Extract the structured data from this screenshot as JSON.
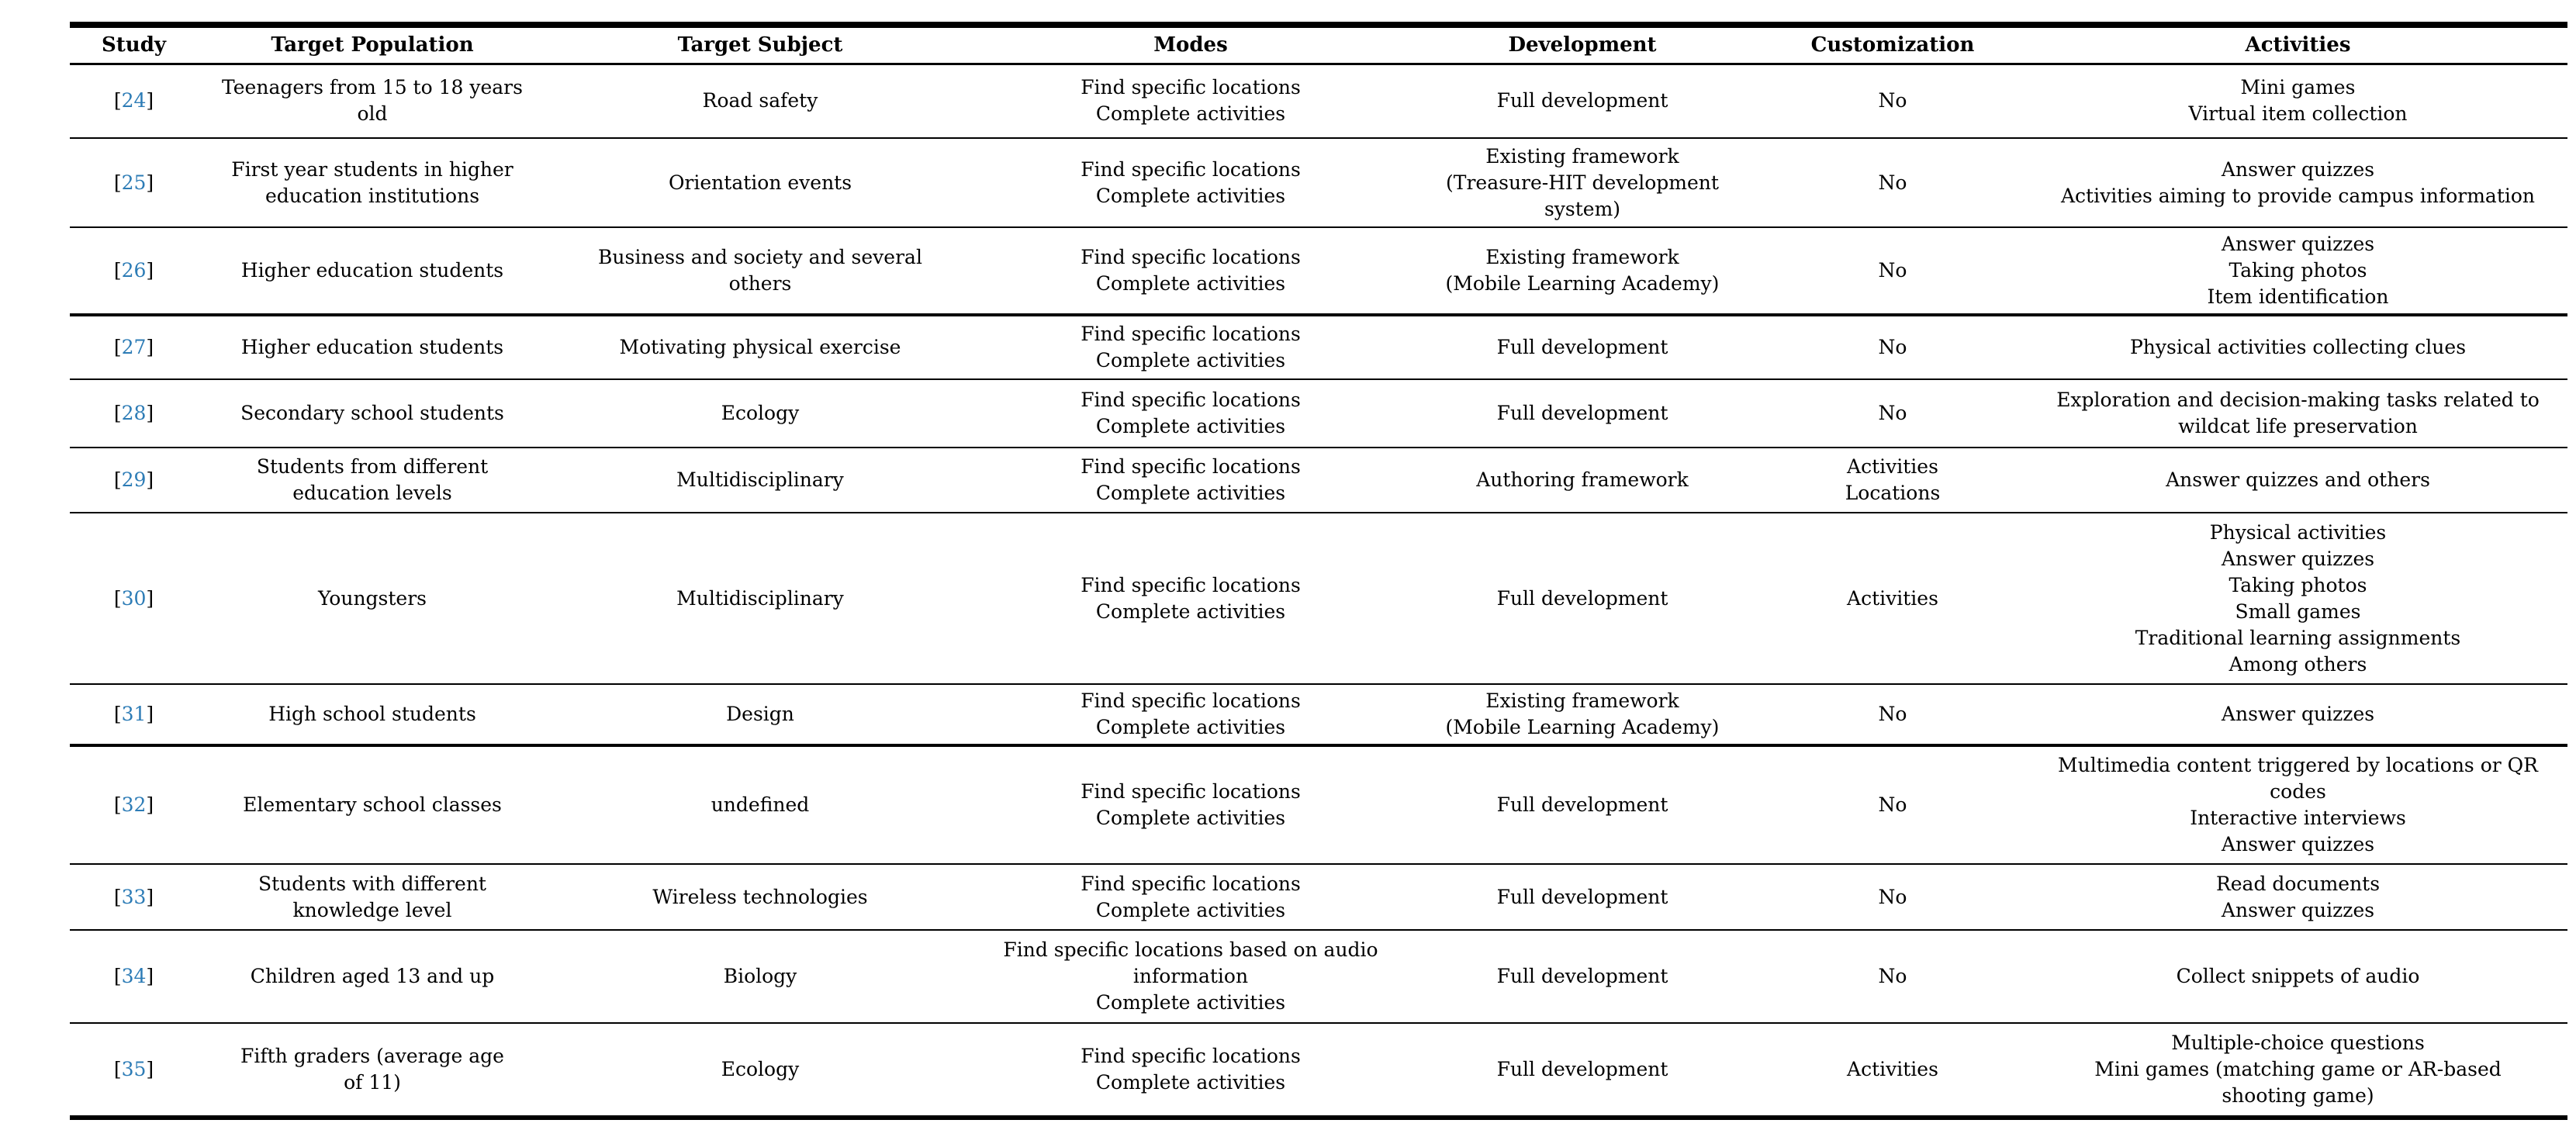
{
  "colors": {
    "citation_link": "#2d7cb6",
    "text": "#000000",
    "rule": "#000000",
    "background": "#ffffff"
  },
  "table": {
    "columns": [
      "Study",
      "Target Population",
      "Target Subject",
      "Modes",
      "Development",
      "Customization",
      "Activities"
    ],
    "citation_brackets": [
      "[",
      "]"
    ],
    "rows": [
      {
        "study": "24",
        "target_population": [
          "Teenagers from 15 to 18 years",
          "old"
        ],
        "target_subject": [
          "Road safety"
        ],
        "modes": [
          "Find specific locations",
          "Complete activities"
        ],
        "development": [
          "Full development"
        ],
        "customization": [
          "No"
        ],
        "activities": [
          "Mini games",
          "Virtual item collection"
        ]
      },
      {
        "study": "25",
        "target_population": [
          "First year students in higher",
          "education institutions"
        ],
        "target_subject": [
          "Orientation events"
        ],
        "modes": [
          "Find specific locations",
          "Complete activities"
        ],
        "development": [
          "Existing framework",
          "(Treasure-HIT development",
          "system)"
        ],
        "customization": [
          "No"
        ],
        "activities": [
          "Answer quizzes",
          "Activities aiming to provide campus information"
        ]
      },
      {
        "study": "26",
        "target_population": [
          "Higher education students"
        ],
        "target_subject": [
          "Business and society and several",
          "others"
        ],
        "modes": [
          "Find specific locations",
          "Complete activities"
        ],
        "development": [
          "Existing framework",
          "(Mobile Learning Academy)"
        ],
        "customization": [
          "No"
        ],
        "activities": [
          "Answer quizzes",
          "Taking photos",
          "Item identification"
        ]
      },
      {
        "study": "27",
        "target_population": [
          "Higher education students"
        ],
        "target_subject": [
          "Motivating physical exercise"
        ],
        "modes": [
          "Find specific locations",
          "Complete activities"
        ],
        "development": [
          "Full development"
        ],
        "customization": [
          "No"
        ],
        "activities": [
          "Physical activities collecting clues"
        ]
      },
      {
        "study": "28",
        "target_population": [
          "Secondary school students"
        ],
        "target_subject": [
          "Ecology"
        ],
        "modes": [
          "Find specific locations",
          "Complete activities"
        ],
        "development": [
          "Full development"
        ],
        "customization": [
          "No"
        ],
        "activities": [
          "Exploration and decision-making tasks related to",
          "wildcat life preservation"
        ]
      },
      {
        "study": "29",
        "target_population": [
          "Students from different",
          "education levels"
        ],
        "target_subject": [
          "Multidisciplinary"
        ],
        "modes": [
          "Find specific locations",
          "Complete activities"
        ],
        "development": [
          "Authoring framework"
        ],
        "customization": [
          "Activities",
          "Locations"
        ],
        "activities": [
          "Answer quizzes and others"
        ]
      },
      {
        "study": "30",
        "target_population": [
          "Youngsters"
        ],
        "target_subject": [
          "Multidisciplinary"
        ],
        "modes": [
          "Find specific locations",
          "Complete activities"
        ],
        "development": [
          "Full development"
        ],
        "customization": [
          "Activities"
        ],
        "activities": [
          "Physical activities",
          "Answer quizzes",
          "Taking photos",
          "Small games",
          "Traditional learning assignments",
          "Among others"
        ]
      },
      {
        "study": "31",
        "target_population": [
          "High school students"
        ],
        "target_subject": [
          "Design"
        ],
        "modes": [
          "Find specific locations",
          "Complete activities"
        ],
        "development": [
          "Existing framework",
          "(Mobile Learning Academy)"
        ],
        "customization": [
          "No"
        ],
        "activities": [
          "Answer quizzes"
        ]
      },
      {
        "study": "32",
        "target_population": [
          "Elementary school classes"
        ],
        "target_subject": [
          "undefined"
        ],
        "modes": [
          "Find specific locations",
          "Complete activities"
        ],
        "development": [
          "Full development"
        ],
        "customization": [
          "No"
        ],
        "activities": [
          "Multimedia content triggered by locations or QR",
          "codes",
          "Interactive interviews",
          "Answer quizzes"
        ]
      },
      {
        "study": "33",
        "target_population": [
          "Students with different",
          "knowledge level"
        ],
        "target_subject": [
          "Wireless technologies"
        ],
        "modes": [
          "Find specific locations",
          "Complete activities"
        ],
        "development": [
          "Full development"
        ],
        "customization": [
          "No"
        ],
        "activities": [
          "Read documents",
          "Answer quizzes"
        ]
      },
      {
        "study": "34",
        "target_population": [
          "Children aged 13 and up"
        ],
        "target_subject": [
          "Biology"
        ],
        "modes": [
          "Find specific locations based on audio",
          "information",
          "Complete activities"
        ],
        "development": [
          "Full development"
        ],
        "customization": [
          "No"
        ],
        "activities": [
          "Collect snippets of audio"
        ]
      },
      {
        "study": "35",
        "target_population": [
          "Fifth graders (average age",
          "of 11)"
        ],
        "target_subject": [
          "Ecology"
        ],
        "modes": [
          "Find specific locations",
          "Complete activities"
        ],
        "development": [
          "Full development"
        ],
        "customization": [
          "Activities"
        ],
        "activities": [
          "Multiple-choice questions",
          "Mini games (matching game or AR-based",
          "shooting game)"
        ]
      }
    ]
  }
}
